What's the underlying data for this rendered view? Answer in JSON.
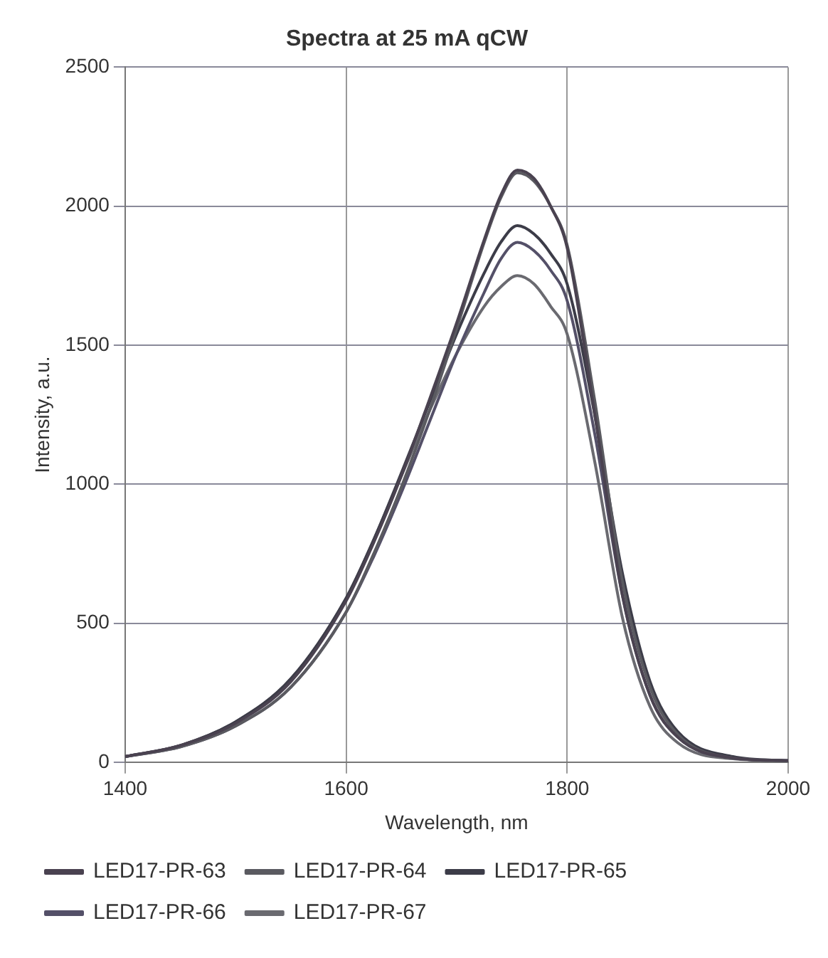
{
  "chart_data": {
    "type": "line",
    "title": "Spectra at 25 mA qCW",
    "xlabel": "Wavelength, nm",
    "ylabel": "Intensity, a.u.",
    "x": [
      1400,
      1450,
      1500,
      1550,
      1600,
      1625,
      1650,
      1675,
      1700,
      1725,
      1740,
      1755,
      1770,
      1785,
      1800,
      1825,
      1850,
      1875,
      1900,
      1950,
      2000
    ],
    "series": [
      {
        "name": "LED17-PR-63",
        "color": "#4a4250",
        "values": [
          20,
          60,
          140,
          290,
          580,
          790,
          1030,
          1300,
          1580,
          1880,
          2040,
          2130,
          2100,
          2000,
          1850,
          1250,
          600,
          240,
          90,
          15,
          5
        ]
      },
      {
        "name": "LED17-PR-64",
        "color": "#5a5a60",
        "values": [
          20,
          55,
          130,
          270,
          540,
          750,
          990,
          1260,
          1560,
          1870,
          2030,
          2120,
          2090,
          2000,
          1860,
          1300,
          650,
          270,
          100,
          15,
          5
        ]
      },
      {
        "name": "LED17-PR-65",
        "color": "#3c3c48",
        "values": [
          20,
          60,
          145,
          300,
          590,
          800,
          1040,
          1290,
          1540,
          1760,
          1870,
          1930,
          1900,
          1830,
          1720,
          1250,
          680,
          290,
          110,
          20,
          5
        ]
      },
      {
        "name": "LED17-PR-66",
        "color": "#545068",
        "values": [
          20,
          55,
          130,
          270,
          540,
          740,
          970,
          1220,
          1470,
          1690,
          1810,
          1870,
          1840,
          1770,
          1660,
          1180,
          600,
          240,
          90,
          15,
          5
        ]
      },
      {
        "name": "LED17-PR-67",
        "color": "#6a6a70",
        "values": [
          20,
          60,
          145,
          300,
          590,
          800,
          1030,
          1260,
          1470,
          1640,
          1710,
          1750,
          1720,
          1640,
          1540,
          1080,
          520,
          200,
          70,
          12,
          5
        ]
      }
    ],
    "xlim": [
      1400,
      2000
    ],
    "xticks": [
      1400,
      1600,
      1800,
      2000
    ],
    "ylim": [
      0,
      2500
    ],
    "yticks": [
      0,
      500,
      1000,
      1500,
      2000,
      2500
    ],
    "grid": true,
    "legend": "bottom",
    "marker": "none",
    "line_style": "solid"
  }
}
